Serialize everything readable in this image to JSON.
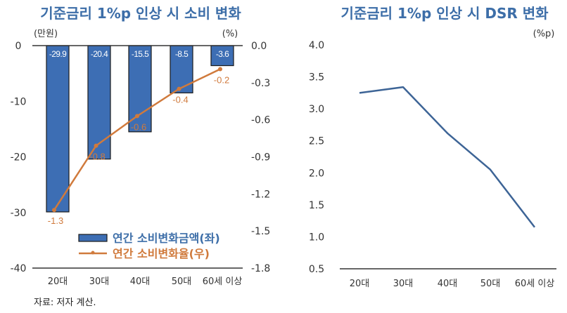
{
  "source_note": "자료: 저자 계산.",
  "chart_data": [
    {
      "type": "bar",
      "title": "기준금리 1%p 인상 시 소비 변화",
      "categories": [
        "20대",
        "30대",
        "40대",
        "50대",
        "60세 이상"
      ],
      "left_axis": {
        "unit": "(만원)",
        "ylim": [
          -40,
          0
        ],
        "ticks": [
          0,
          -10,
          -20,
          -30,
          -40
        ],
        "tick_labels": [
          "0",
          "-10",
          "-20",
          "-30",
          "-40"
        ]
      },
      "right_axis": {
        "unit": "(%)",
        "ylim": [
          -1.8,
          0.0
        ],
        "ticks": [
          0.0,
          -0.3,
          -0.6,
          -0.9,
          -1.2,
          -1.5,
          -1.8
        ],
        "tick_labels": [
          "0.0",
          "-0.3",
          "-0.6",
          "-0.9",
          "-1.2",
          "-1.5",
          "-1.8"
        ]
      },
      "series": [
        {
          "name": "연간 소비변화금액(좌)",
          "type": "bar",
          "axis": "left",
          "color": "#3d6eb4",
          "values": [
            -29.9,
            -20.4,
            -15.5,
            -8.5,
            -3.6
          ],
          "labels": [
            "-29.9",
            "-20.4",
            "-15.5",
            "-8.5",
            "-3.6"
          ]
        },
        {
          "name": "연간 소비변화율(우)",
          "type": "line",
          "axis": "right",
          "color": "#d07a3c",
          "values": [
            -1.33,
            -0.81,
            -0.57,
            -0.35,
            -0.19
          ],
          "labels": [
            "-1.3",
            "-0.8",
            "-0.6",
            "-0.4",
            "-0.2"
          ]
        }
      ],
      "legend": "bottom-right",
      "grid": false
    },
    {
      "type": "line",
      "title": "기준금리 1%p 인상 시 DSR 변화",
      "categories": [
        "20대",
        "30대",
        "40대",
        "50대",
        "60세 이상"
      ],
      "unit": "(%p)",
      "ylim": [
        0.5,
        4.0
      ],
      "ticks": [
        4.0,
        3.5,
        3.0,
        2.5,
        2.0,
        1.5,
        1.0,
        0.5
      ],
      "tick_labels": [
        "4.0",
        "3.5",
        "3.0",
        "2.5",
        "2.0",
        "1.5",
        "1.0",
        "0.5"
      ],
      "series": [
        {
          "name": "DSR 변화",
          "color": "#3d6496",
          "values": [
            3.25,
            3.34,
            2.62,
            2.05,
            1.15
          ]
        }
      ],
      "grid": false
    }
  ]
}
